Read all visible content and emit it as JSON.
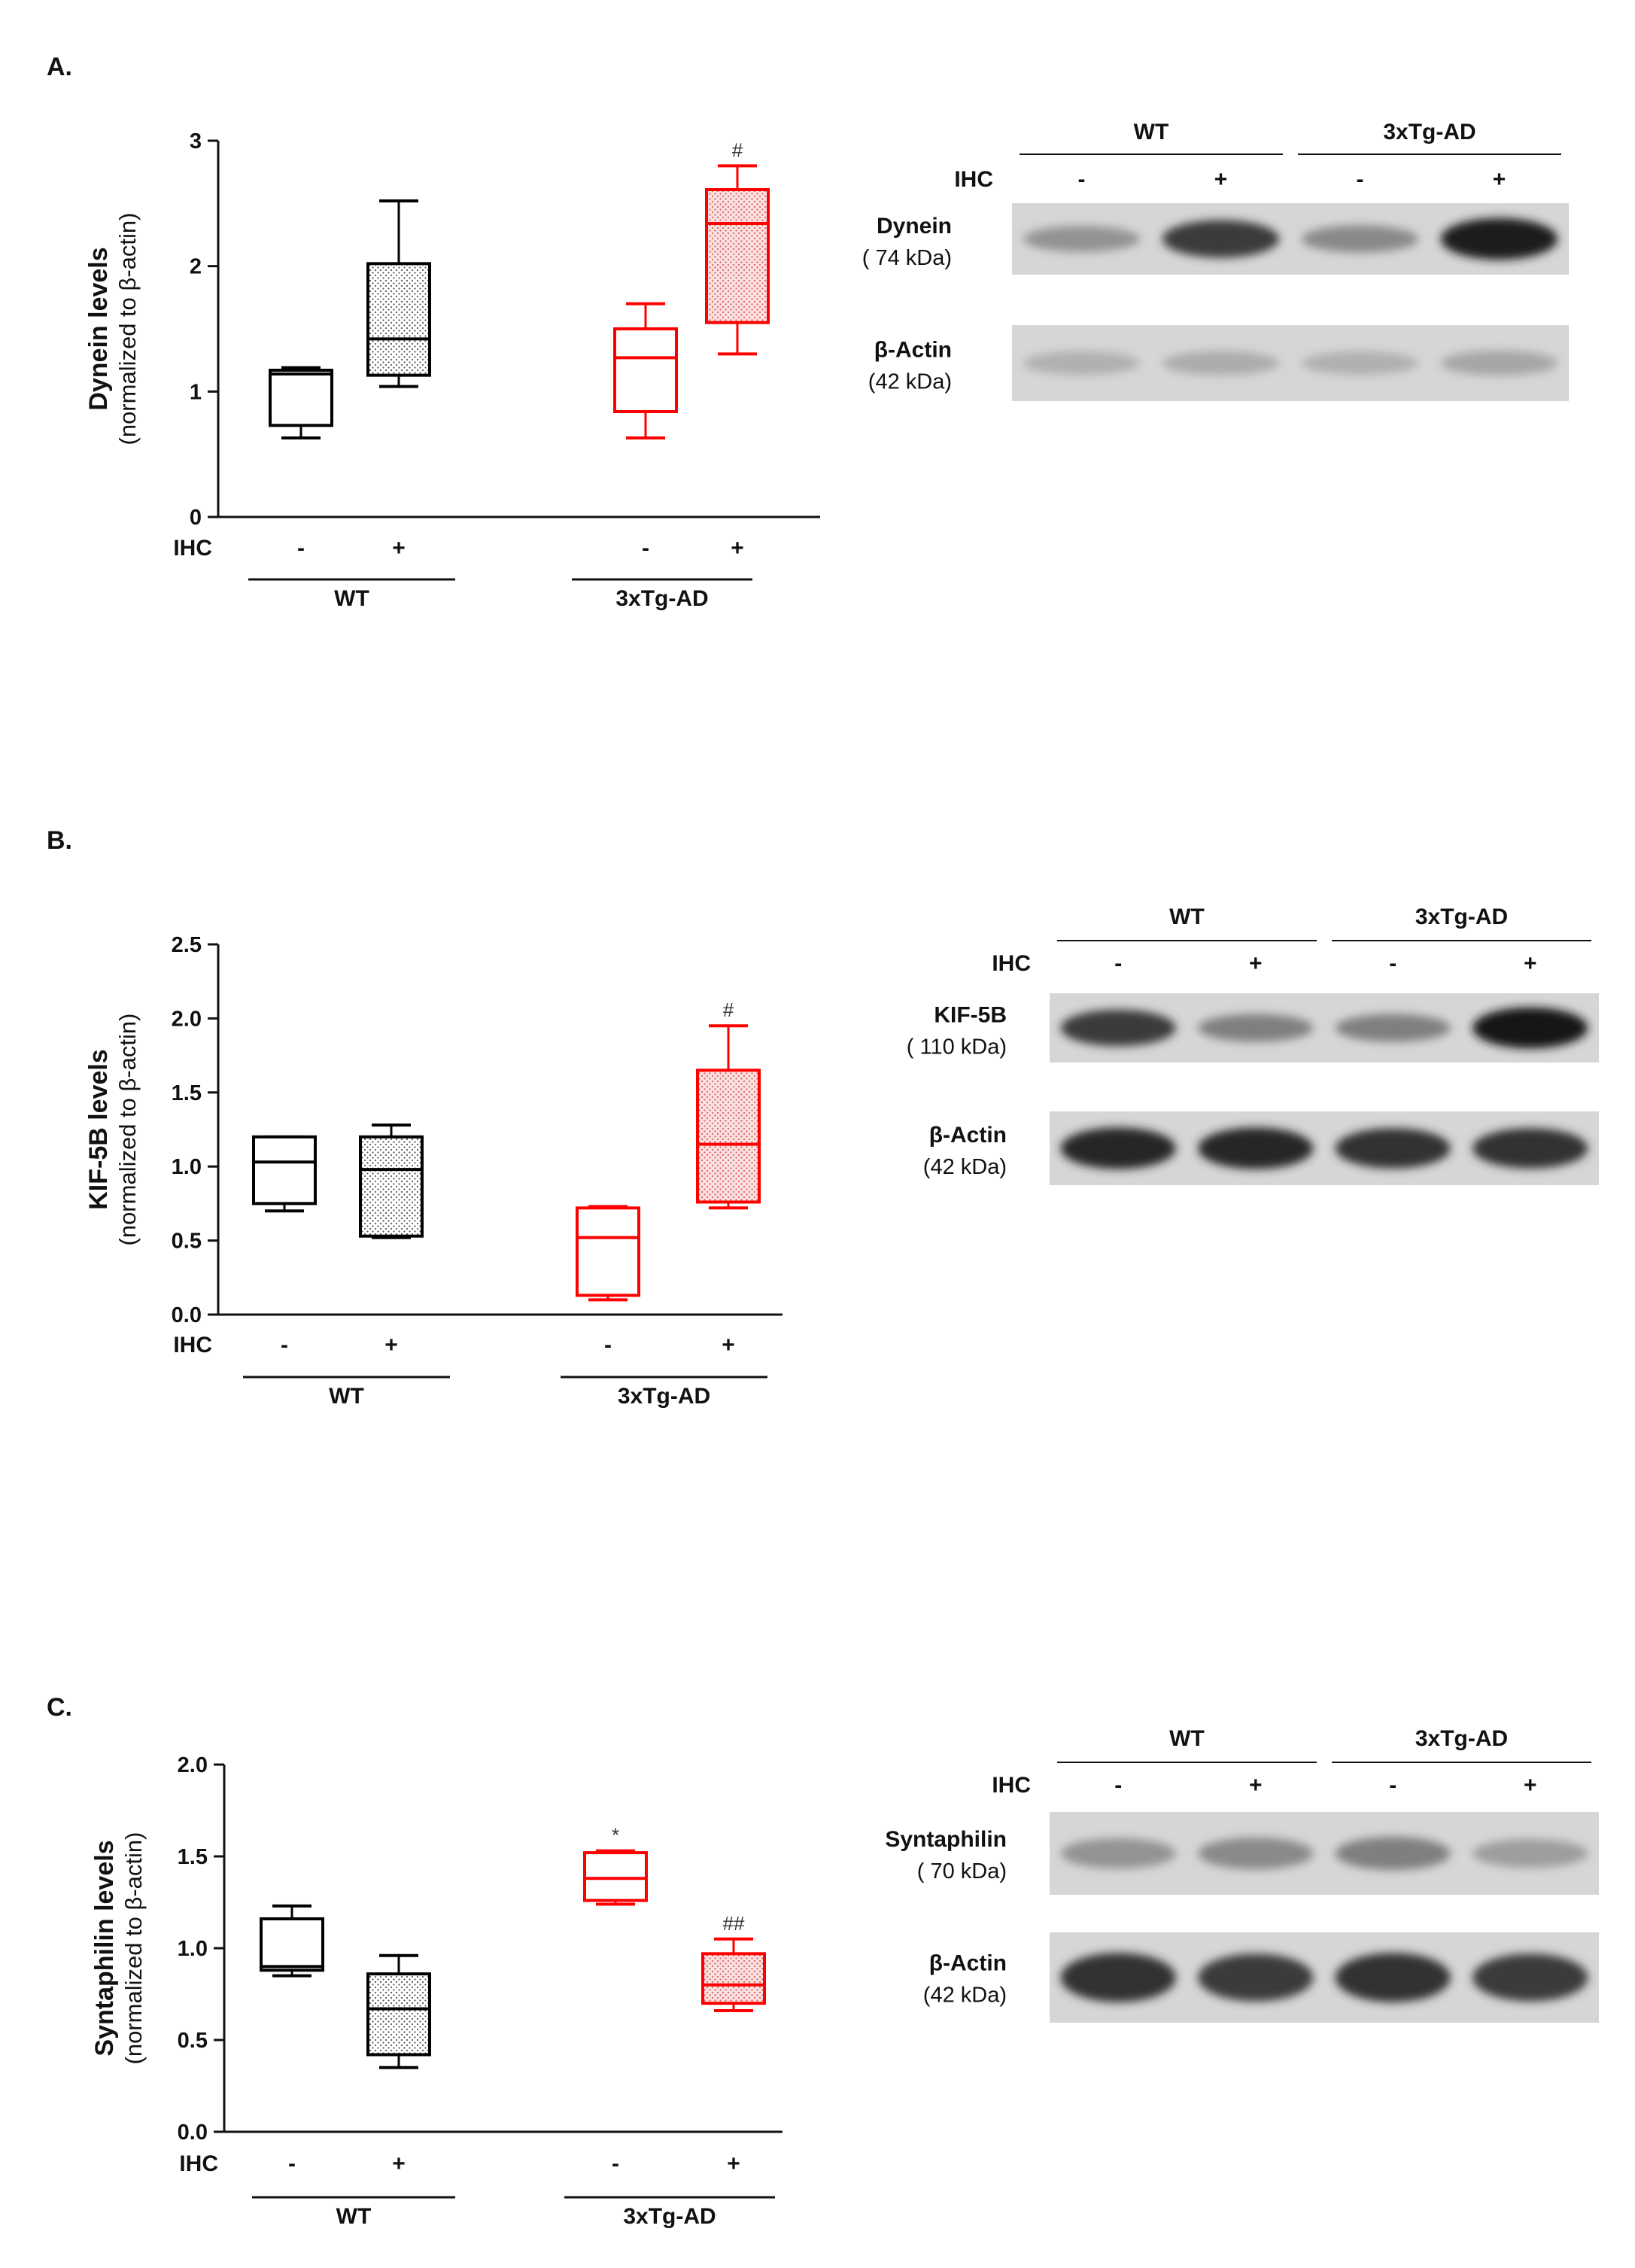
{
  "colors": {
    "wt": "#000000",
    "tg": "#ff0000",
    "blot_bg": "#d6d6d6"
  },
  "patterns": {
    "hatched": "dotted-fill"
  },
  "chart_data": [
    {
      "panel_label": "A.",
      "type": "box",
      "ylabel_main": "Dynein levels",
      "ylabel_sub": "(normalized to β-actin)",
      "ylim": [
        0,
        3
      ],
      "yticks": [
        "0",
        "1",
        "2",
        "3"
      ],
      "ytick_values": [
        0,
        1,
        2,
        3
      ],
      "x_row_label": "IHC",
      "boxes": [
        {
          "group": "WT",
          "ihc": "-",
          "color": "wt",
          "fill": "none",
          "whisker_low": 0.63,
          "q1": 0.73,
          "median": 1.14,
          "q3": 1.17,
          "whisker_high": 1.19,
          "annotation": ""
        },
        {
          "group": "WT",
          "ihc": "+",
          "color": "wt",
          "fill": "dotted",
          "whisker_low": 1.04,
          "q1": 1.13,
          "median": 1.42,
          "q3": 2.02,
          "whisker_high": 2.52,
          "annotation": ""
        },
        {
          "group": "3xTg-AD",
          "ihc": "-",
          "color": "tg",
          "fill": "none",
          "whisker_low": 0.63,
          "q1": 0.84,
          "median": 1.27,
          "q3": 1.5,
          "whisker_high": 1.7,
          "annotation": ""
        },
        {
          "group": "3xTg-AD",
          "ihc": "+",
          "color": "tg",
          "fill": "dotted",
          "whisker_low": 1.3,
          "q1": 1.55,
          "median": 2.34,
          "q3": 2.61,
          "whisker_high": 2.8,
          "annotation": "#"
        }
      ],
      "groups": [
        "WT",
        "3xTg-AD"
      ],
      "blot": {
        "groups": [
          "WT",
          "3xTg-AD"
        ],
        "ihc_label": "IHC",
        "lanes": [
          "-",
          "+",
          "-",
          "+"
        ],
        "rows": [
          {
            "protein": "Dynein",
            "kda": "( 74 kDa)",
            "intensity": [
              0.35,
              0.8,
              0.4,
              0.95
            ]
          },
          {
            "protein": "β-Actin",
            "kda": "(42 kDa)",
            "intensity": [
              0.2,
              0.22,
              0.2,
              0.25
            ]
          }
        ]
      }
    },
    {
      "panel_label": "B.",
      "type": "box",
      "ylabel_main": "KIF-5B levels",
      "ylabel_sub": "(normalized to β-actin)",
      "ylim": [
        0,
        2.5
      ],
      "yticks": [
        "0.0",
        "0.5",
        "1.0",
        "1.5",
        "2.0",
        "2.5"
      ],
      "ytick_values": [
        0,
        0.5,
        1.0,
        1.5,
        2.0,
        2.5
      ],
      "x_row_label": "IHC",
      "boxes": [
        {
          "group": "WT",
          "ihc": "-",
          "color": "wt",
          "fill": "none",
          "whisker_low": 0.7,
          "q1": 0.75,
          "median": 1.03,
          "q3": 1.2,
          "whisker_high": 1.2,
          "annotation": ""
        },
        {
          "group": "WT",
          "ihc": "+",
          "color": "wt",
          "fill": "dotted",
          "whisker_low": 0.52,
          "q1": 0.53,
          "median": 0.98,
          "q3": 1.2,
          "whisker_high": 1.28,
          "annotation": ""
        },
        {
          "group": "3xTg-AD",
          "ihc": "-",
          "color": "tg",
          "fill": "none",
          "whisker_low": 0.1,
          "q1": 0.13,
          "median": 0.52,
          "q3": 0.72,
          "whisker_high": 0.73,
          "annotation": ""
        },
        {
          "group": "3xTg-AD",
          "ihc": "+",
          "color": "tg",
          "fill": "dotted",
          "whisker_low": 0.72,
          "q1": 0.76,
          "median": 1.15,
          "q3": 1.65,
          "whisker_high": 1.95,
          "annotation": "#"
        }
      ],
      "groups": [
        "WT",
        "3xTg-AD"
      ],
      "blot": {
        "groups": [
          "WT",
          "3xTg-AD"
        ],
        "ihc_label": "IHC",
        "lanes": [
          "-",
          "+",
          "-",
          "+"
        ],
        "rows": [
          {
            "protein": "KIF-5B",
            "kda": "( 110 kDa)",
            "intensity": [
              0.8,
              0.45,
              0.45,
              0.98
            ]
          },
          {
            "protein": "β-Actin",
            "kda": "(42 kDa)",
            "intensity": [
              0.9,
              0.9,
              0.85,
              0.85
            ]
          }
        ]
      }
    },
    {
      "panel_label": "C.",
      "type": "box",
      "ylabel_main": "Syntaphilin  levels",
      "ylabel_sub": "(normalized to β-actin)",
      "ylim": [
        0,
        2.0
      ],
      "yticks": [
        "0.0",
        "0.5",
        "1.0",
        "1.5",
        "2.0"
      ],
      "ytick_values": [
        0,
        0.5,
        1.0,
        1.5,
        2.0
      ],
      "x_row_label": "IHC",
      "boxes": [
        {
          "group": "WT",
          "ihc": "-",
          "color": "wt",
          "fill": "none",
          "whisker_low": 0.85,
          "q1": 0.88,
          "median": 0.9,
          "q3": 1.16,
          "whisker_high": 1.23,
          "annotation": ""
        },
        {
          "group": "WT",
          "ihc": "+",
          "color": "wt",
          "fill": "dotted",
          "whisker_low": 0.35,
          "q1": 0.42,
          "median": 0.67,
          "q3": 0.86,
          "whisker_high": 0.96,
          "annotation": ""
        },
        {
          "group": "3xTg-AD",
          "ihc": "-",
          "color": "tg",
          "fill": "none",
          "whisker_low": 1.24,
          "q1": 1.26,
          "median": 1.38,
          "q3": 1.52,
          "whisker_high": 1.53,
          "annotation": "*"
        },
        {
          "group": "3xTg-AD",
          "ihc": "+",
          "color": "tg",
          "fill": "dotted",
          "whisker_low": 0.66,
          "q1": 0.7,
          "median": 0.8,
          "q3": 0.97,
          "whisker_high": 1.05,
          "annotation": "##"
        }
      ],
      "groups": [
        "WT",
        "3xTg-AD"
      ],
      "blot": {
        "groups": [
          "WT",
          "3xTg-AD"
        ],
        "ihc_label": "IHC",
        "lanes": [
          "-",
          "+",
          "-",
          "+"
        ],
        "rows": [
          {
            "protein": "Syntaphilin",
            "kda": "( 70 kDa)",
            "intensity": [
              0.35,
              0.4,
              0.45,
              0.3
            ]
          },
          {
            "protein": "β-Actin",
            "kda": "(42 kDa)",
            "intensity": [
              0.85,
              0.8,
              0.85,
              0.8
            ]
          }
        ]
      }
    }
  ]
}
